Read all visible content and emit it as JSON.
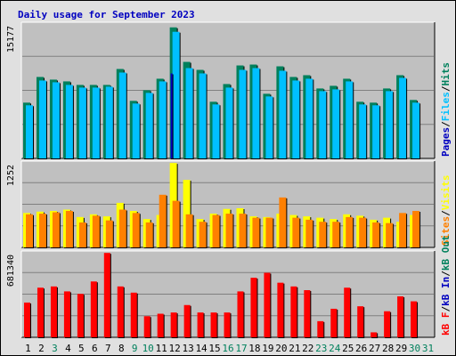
{
  "title": "Daily usage for September 2023",
  "chart_data": [
    {
      "type": "bar",
      "panel": "pages-files-hits",
      "ymax_label": "15177",
      "ylim": [
        0,
        15177
      ],
      "categories": [
        "1",
        "2",
        "3",
        "4",
        "5",
        "6",
        "7",
        "8",
        "9",
        "10",
        "11",
        "12",
        "13",
        "14",
        "15",
        "16",
        "17",
        "18",
        "19",
        "20",
        "21",
        "22",
        "23",
        "24",
        "25",
        "26",
        "27",
        "28",
        "29",
        "30",
        "31"
      ],
      "series": [
        {
          "name": "Hits",
          "color": "#00805c",
          "values": [
            6300,
            9200,
            8900,
            8700,
            8300,
            8300,
            8300,
            10100,
            6500,
            7700,
            9000,
            14800,
            10900,
            10000,
            6400,
            8400,
            10500,
            10600,
            7300,
            10400,
            9200,
            9400,
            7900,
            8200,
            9000,
            6400,
            6300,
            7900,
            9400,
            6600,
            0
          ]
        },
        {
          "name": "Files",
          "color": "#00c0ff",
          "values": [
            6000,
            8800,
            8600,
            8300,
            8000,
            8000,
            8100,
            9700,
            6200,
            7400,
            8700,
            14300,
            10200,
            9600,
            6100,
            8000,
            10000,
            10200,
            7000,
            9900,
            8800,
            9000,
            7600,
            7800,
            8700,
            6100,
            6000,
            7600,
            9100,
            6300,
            0
          ]
        },
        {
          "name": "Pages",
          "color": "#0000c0",
          "values": [
            0,
            0,
            0,
            0,
            0,
            0,
            0,
            0,
            0,
            0,
            0,
            9600,
            0,
            0,
            0,
            0,
            0,
            0,
            0,
            0,
            0,
            0,
            0,
            0,
            0,
            0,
            0,
            0,
            0,
            0,
            0
          ]
        }
      ],
      "legend": [
        "Pages",
        "/",
        "Files",
        "/",
        "Hits"
      ]
    },
    {
      "type": "bar",
      "panel": "visits-sites",
      "ymax_label": "1252",
      "ylim": [
        0,
        1252
      ],
      "categories": [
        "1",
        "2",
        "3",
        "4",
        "5",
        "6",
        "7",
        "8",
        "9",
        "10",
        "11",
        "12",
        "13",
        "14",
        "15",
        "16",
        "17",
        "18",
        "19",
        "20",
        "21",
        "22",
        "23",
        "24",
        "25",
        "26",
        "27",
        "28",
        "29",
        "30",
        "31"
      ],
      "series": [
        {
          "name": "Visits",
          "color": "#ffff00",
          "values": [
            510,
            530,
            540,
            560,
            450,
            490,
            460,
            660,
            540,
            420,
            480,
            1250,
            1000,
            420,
            500,
            570,
            580,
            460,
            450,
            500,
            480,
            460,
            440,
            420,
            490,
            470,
            410,
            440,
            380,
            480,
            0
          ]
        },
        {
          "name": "Sites",
          "color": "#ff8000",
          "values": [
            490,
            500,
            520,
            540,
            370,
            470,
            400,
            560,
            510,
            370,
            780,
            690,
            490,
            380,
            480,
            500,
            500,
            440,
            440,
            740,
            440,
            410,
            380,
            380,
            450,
            440,
            370,
            360,
            510,
            540,
            0
          ]
        }
      ],
      "legend": [
        "Sites",
        "/",
        "Visits"
      ]
    },
    {
      "type": "bar",
      "panel": "kb",
      "ymax_label": "681340",
      "ylim": [
        0,
        681340
      ],
      "categories": [
        "1",
        "2",
        "3",
        "4",
        "5",
        "6",
        "7",
        "8",
        "9",
        "10",
        "11",
        "12",
        "13",
        "14",
        "15",
        "16",
        "17",
        "18",
        "19",
        "20",
        "21",
        "22",
        "23",
        "24",
        "25",
        "26",
        "27",
        "28",
        "29",
        "30",
        "31"
      ],
      "series": [
        {
          "name": "kB F",
          "color": "#ff0000",
          "values": [
            280000,
            400000,
            410000,
            370000,
            350000,
            450000,
            680000,
            410000,
            360000,
            170000,
            190000,
            200000,
            260000,
            200000,
            200000,
            200000,
            370000,
            480000,
            520000,
            440000,
            410000,
            380000,
            130000,
            230000,
            400000,
            250000,
            40000,
            210000,
            330000,
            290000,
            0
          ]
        },
        {
          "name": "kB In",
          "color": "#0000c0",
          "values": [
            0,
            0,
            0,
            0,
            0,
            0,
            0,
            0,
            0,
            0,
            0,
            0,
            0,
            0,
            0,
            0,
            0,
            0,
            0,
            0,
            0,
            0,
            0,
            0,
            0,
            0,
            0,
            0,
            0,
            0,
            0
          ]
        },
        {
          "name": "kB Out",
          "color": "#00805c",
          "values": [
            0,
            0,
            0,
            0,
            0,
            0,
            0,
            0,
            0,
            0,
            0,
            0,
            0,
            0,
            0,
            0,
            0,
            0,
            0,
            0,
            0,
            0,
            0,
            0,
            0,
            0,
            0,
            0,
            0,
            0,
            0
          ]
        }
      ],
      "legend": [
        "kB F",
        "/",
        "kB In",
        "/",
        "kB Out"
      ]
    }
  ],
  "day_label_colors": [
    "#000000",
    "#000000",
    "#00805c",
    "#000000",
    "#000000",
    "#000000",
    "#000000",
    "#000000",
    "#00805c",
    "#00805c",
    "#000000",
    "#000000",
    "#000000",
    "#000000",
    "#000000",
    "#00805c",
    "#00805c",
    "#000000",
    "#000000",
    "#000000",
    "#000000",
    "#000000",
    "#00805c",
    "#00805c",
    "#000000",
    "#000000",
    "#000000",
    "#000000",
    "#000000",
    "#00805c",
    "#00805c"
  ],
  "gridline_color": "#808080",
  "panel_bg": "#c0c0c0"
}
